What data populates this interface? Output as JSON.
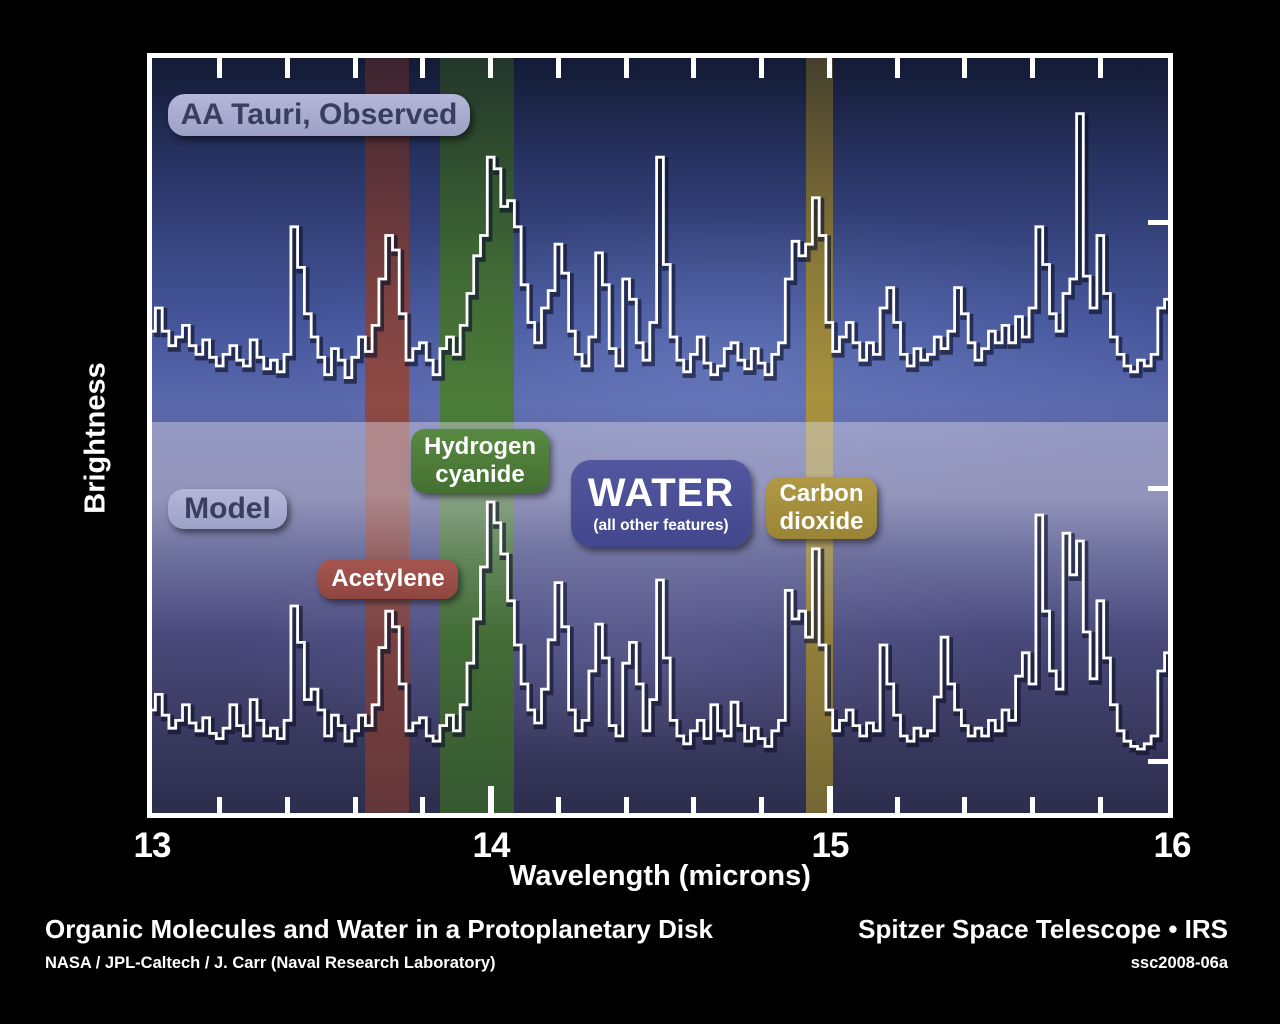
{
  "figure": {
    "panel_labels": {
      "observed": "AA Tauri, Observed",
      "model": "Model"
    },
    "feature_labels": {
      "acetylene": "Acetylene",
      "hcn_line1": "Hydrogen",
      "hcn_line2": "cyanide",
      "water_main": "WATER",
      "water_sub": "(all other features)",
      "co2_line1": "Carbon",
      "co2_line2": "dioxide"
    },
    "colors": {
      "acetylene_band": "#8e4a45",
      "hcn_band": "#4c7c39",
      "co2_band": "#a8923e",
      "water_label_bg": "#4a4e99",
      "panel_label_bg": "#a8abce",
      "panel_label_text": "#393d60",
      "spectrum_line": "#ffffff"
    }
  },
  "axes": {
    "x_label": "Wavelength (microns)",
    "y_label": "Brightness",
    "x_tick_labels": [
      "13",
      "14",
      "15",
      "16"
    ]
  },
  "captions": {
    "title": "Organic Molecules and Water in a Protoplanetary Disk",
    "credit": "NASA / JPL-Caltech / J. Carr (Naval Research Laboratory)",
    "right_title": "Spitzer Space Telescope • IRS",
    "right_id": "ssc2008-06a"
  },
  "chart_data": {
    "type": "line",
    "subtype": "step-histogram-spectrum",
    "title": "Organic Molecules and Water in a Protoplanetary Disk",
    "xlabel": "Wavelength (microns)",
    "ylabel": "Brightness",
    "xlim": [
      13,
      16
    ],
    "x_major_ticks": [
      13,
      14,
      15,
      16
    ],
    "x_minor_tick_step": 0.2,
    "grid": false,
    "legend_position": "none",
    "x_start": 13.0,
    "x_step": 0.02,
    "y_units": "relative brightness (arbitrary units, 0-100 per panel)",
    "series": [
      {
        "name": "AA Tauri, Observed",
        "panel": "top",
        "values": [
          22,
          30,
          22,
          17,
          20,
          24,
          17,
          14,
          19,
          13,
          10,
          14,
          17,
          12,
          10,
          19,
          13,
          9,
          12,
          8,
          14,
          58,
          44,
          28,
          20,
          13,
          7,
          16,
          12,
          6,
          13,
          20,
          15,
          24,
          40,
          55,
          50,
          28,
          12,
          16,
          18,
          12,
          7,
          16,
          20,
          14,
          24,
          35,
          48,
          55,
          82,
          78,
          65,
          67,
          58,
          38,
          25,
          18,
          30,
          36,
          52,
          42,
          22,
          14,
          10,
          20,
          49,
          38,
          16,
          10,
          40,
          33,
          18,
          12,
          25,
          82,
          45,
          20,
          12,
          8,
          14,
          20,
          11,
          7,
          10,
          16,
          18,
          12,
          9,
          16,
          11,
          7,
          14,
          18,
          40,
          53,
          48,
          52,
          68,
          55,
          25,
          15,
          20,
          25,
          18,
          12,
          18,
          14,
          30,
          37,
          25,
          14,
          10,
          16,
          12,
          14,
          20,
          16,
          22,
          37,
          28,
          18,
          12,
          16,
          22,
          18,
          24,
          18,
          27,
          20,
          30,
          58,
          45,
          28,
          22,
          35,
          40,
          97,
          41,
          30,
          55,
          35,
          20,
          14,
          10,
          8,
          12,
          10,
          14,
          30,
          33
        ]
      },
      {
        "name": "Model",
        "panel": "bottom",
        "values": [
          20,
          26,
          18,
          13,
          16,
          22,
          15,
          12,
          17,
          11,
          9,
          13,
          22,
          14,
          10,
          24,
          16,
          10,
          13,
          9,
          16,
          60,
          46,
          24,
          28,
          20,
          10,
          18,
          14,
          8,
          12,
          18,
          14,
          22,
          44,
          58,
          52,
          30,
          12,
          15,
          17,
          10,
          8,
          14,
          18,
          12,
          22,
          38,
          55,
          75,
          100,
          92,
          80,
          62,
          45,
          30,
          20,
          15,
          28,
          47,
          69,
          52,
          20,
          12,
          16,
          35,
          53,
          40,
          14,
          10,
          38,
          46,
          30,
          12,
          24,
          70,
          40,
          16,
          10,
          7,
          12,
          16,
          9,
          22,
          12,
          10,
          23,
          14,
          8,
          13,
          9,
          6,
          12,
          16,
          66,
          55,
          58,
          48,
          82,
          45,
          20,
          12,
          16,
          20,
          14,
          10,
          15,
          12,
          45,
          30,
          18,
          10,
          8,
          13,
          10,
          12,
          25,
          48,
          30,
          20,
          14,
          10,
          13,
          10,
          16,
          12,
          20,
          16,
          33,
          42,
          30,
          95,
          58,
          35,
          28,
          88,
          72,
          85,
          50,
          32,
          62,
          40,
          22,
          12,
          8,
          6,
          5,
          7,
          10,
          35,
          42
        ]
      }
    ],
    "annotations": {
      "bands": [
        {
          "label": "Acetylene",
          "x_range": [
            13.63,
            13.76
          ],
          "color": "#8e4a45"
        },
        {
          "label": "Hydrogen cyanide",
          "x_range": [
            13.85,
            14.07
          ],
          "color": "#4c7c39"
        },
        {
          "label": "Carbon dioxide",
          "x_range": [
            14.93,
            15.01
          ],
          "color": "#a8923e"
        },
        {
          "label": "WATER (all other features)",
          "x_range": null,
          "color": "#4a4e99"
        }
      ]
    }
  }
}
